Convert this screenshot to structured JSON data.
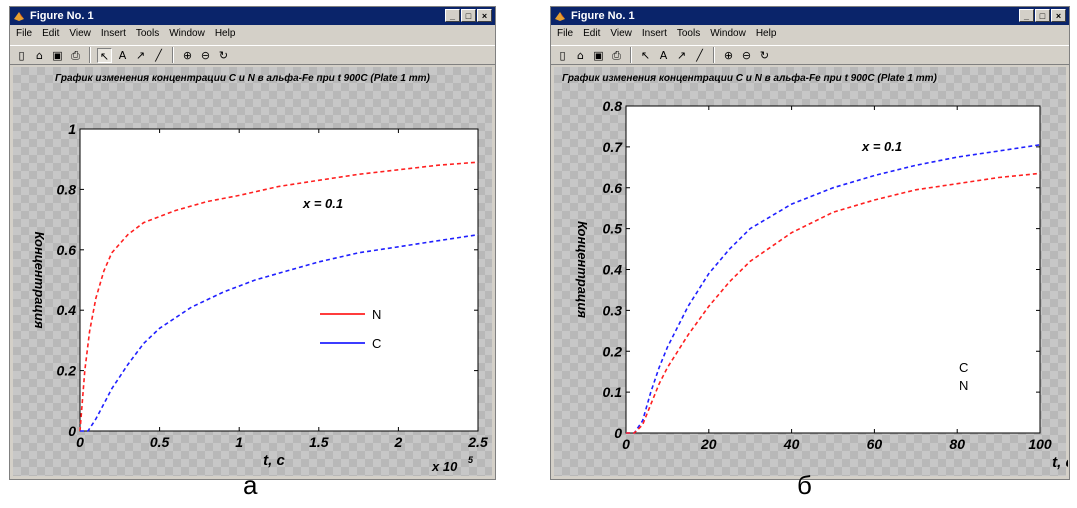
{
  "windows": [
    {
      "title": "Figure No. 1",
      "menu": [
        "File",
        "Edit",
        "View",
        "Insert",
        "Tools",
        "Window",
        "Help"
      ],
      "plot_title": "График изменения концентрации С и N в альфа-Fe при t 900С (Plate 1 mm)",
      "caption": "а",
      "ylabel": "Концентрация",
      "xlabel": "t, c",
      "annotation": "x = 0.1",
      "legend": [
        "N",
        "C"
      ],
      "exponent_label": "x 10",
      "exponent_power": "5"
    },
    {
      "title": "Figure No. 1",
      "menu": [
        "File",
        "Edit",
        "View",
        "Insert",
        "Tools",
        "Window",
        "Help"
      ],
      "plot_title": "График изменения концентрации С и N в альфа-Fe при t 900С (Plate 1 mm)",
      "caption": "б",
      "ylabel": "Концентрация",
      "xlabel": "t, c",
      "annotation": "x = 0.1",
      "legend": [
        "C",
        "N"
      ]
    }
  ],
  "colors": {
    "N": "#ff2020",
    "C": "#2020ff",
    "titlebar": "#0a246a"
  },
  "chart_data": [
    {
      "type": "line",
      "xlim": [
        0,
        2.5
      ],
      "ylim": [
        0,
        1
      ],
      "xticks": [
        0,
        0.5,
        1,
        1.5,
        2,
        2.5
      ],
      "xtick_labels": [
        "0",
        "0.5",
        "1",
        "1.5",
        "2",
        "2.5"
      ],
      "yticks": [
        0,
        0.2,
        0.4,
        0.6,
        0.8,
        1
      ],
      "ytick_labels": [
        "0",
        "0.2",
        "0.4",
        "0.6",
        "0.8",
        "1"
      ],
      "grid": false,
      "legend_position": "right",
      "series": [
        {
          "name": "N",
          "color": "#ff2020",
          "x": [
            0,
            0.03,
            0.06,
            0.1,
            0.15,
            0.2,
            0.3,
            0.4,
            0.6,
            0.8,
            1.0,
            1.25,
            1.5,
            1.75,
            2.0,
            2.25,
            2.5
          ],
          "y": [
            0,
            0.2,
            0.33,
            0.44,
            0.53,
            0.59,
            0.65,
            0.69,
            0.73,
            0.76,
            0.78,
            0.81,
            0.83,
            0.85,
            0.865,
            0.88,
            0.89
          ]
        },
        {
          "name": "C",
          "color": "#2020ff",
          "x": [
            0,
            0.05,
            0.1,
            0.15,
            0.2,
            0.3,
            0.4,
            0.5,
            0.7,
            0.9,
            1.1,
            1.3,
            1.5,
            1.75,
            2.0,
            2.25,
            2.5
          ],
          "y": [
            0,
            0,
            0.04,
            0.09,
            0.14,
            0.22,
            0.29,
            0.34,
            0.41,
            0.46,
            0.5,
            0.53,
            0.56,
            0.59,
            0.61,
            0.63,
            0.65
          ]
        }
      ]
    },
    {
      "type": "line",
      "xlim": [
        0,
        100
      ],
      "ylim": [
        0,
        0.8
      ],
      "xticks": [
        0,
        20,
        40,
        60,
        80,
        100
      ],
      "xtick_labels": [
        "0",
        "20",
        "40",
        "60",
        "80",
        "100"
      ],
      "yticks": [
        0,
        0.1,
        0.2,
        0.3,
        0.4,
        0.5,
        0.6,
        0.7,
        0.8
      ],
      "ytick_labels": [
        "0",
        "0.1",
        "0.2",
        "0.3",
        "0.4",
        "0.5",
        "0.6",
        "0.7",
        "0.8"
      ],
      "grid": false,
      "legend_position": "bottom-right",
      "series": [
        {
          "name": "C",
          "color": "#2020ff",
          "x": [
            0,
            2,
            4,
            6,
            8,
            10,
            15,
            20,
            25,
            30,
            40,
            50,
            60,
            70,
            80,
            90,
            100
          ],
          "y": [
            0,
            0,
            0.03,
            0.1,
            0.16,
            0.21,
            0.31,
            0.39,
            0.45,
            0.5,
            0.56,
            0.6,
            0.63,
            0.655,
            0.675,
            0.69,
            0.705
          ]
        },
        {
          "name": "N",
          "color": "#ff2020",
          "x": [
            0,
            2,
            4,
            6,
            8,
            10,
            15,
            20,
            25,
            30,
            40,
            50,
            60,
            70,
            80,
            90,
            100
          ],
          "y": [
            0,
            0,
            0.02,
            0.07,
            0.12,
            0.16,
            0.24,
            0.31,
            0.37,
            0.42,
            0.49,
            0.54,
            0.57,
            0.595,
            0.61,
            0.625,
            0.635
          ]
        }
      ]
    }
  ]
}
